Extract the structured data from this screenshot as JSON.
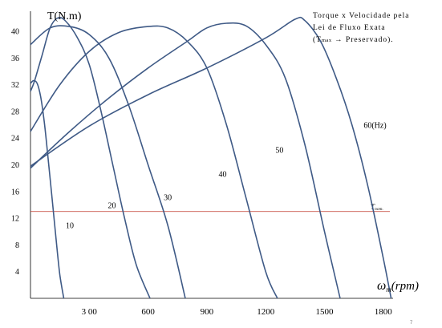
{
  "chart_data": {
    "type": "line",
    "ylabel": "T(N.m)",
    "xlabel_symbol": "ω",
    "xlabel_subscript": "m",
    "xlabel_unit": "(rpm)",
    "xlim": [
      0,
      1850
    ],
    "ylim": [
      0,
      43
    ],
    "x_ticks": [
      {
        "value": 300,
        "label": "3 00"
      },
      {
        "value": 600,
        "label": "600"
      },
      {
        "value": 900,
        "label": "900"
      },
      {
        "value": 1200,
        "label": "1200"
      },
      {
        "value": 1500,
        "label": "1500"
      },
      {
        "value": 1800,
        "label": "1800"
      }
    ],
    "y_ticks": [
      4,
      8,
      12,
      16,
      20,
      24,
      28,
      32,
      36,
      40
    ],
    "grid": false,
    "annotation": {
      "line1": "Torque x Velocidade pela",
      "line2": "Lei de Fluxo Exata",
      "tmax_main": "T",
      "tmax_sub": "max",
      "arrow": "→",
      "preserved": "Preservado)."
    },
    "rated_torque": {
      "value": 13,
      "label_main": "T",
      "label_sub": "nom.",
      "color": "#c0392b"
    },
    "series": [
      {
        "name": "10",
        "label_at": [
          180,
          10.5
        ],
        "points": [
          [
            0,
            32.2
          ],
          [
            16,
            32.6
          ],
          [
            34,
            32.2
          ],
          [
            52,
            30.2
          ],
          [
            70,
            26.5
          ],
          [
            88,
            21.5
          ],
          [
            110,
            15
          ],
          [
            130,
            9
          ],
          [
            150,
            3.5
          ],
          [
            170,
            0
          ]
        ]
      },
      {
        "name": "20",
        "label_at": [
          395,
          13.5
        ],
        "points": [
          [
            0,
            31
          ],
          [
            20,
            32.5
          ],
          [
            60,
            36.5
          ],
          [
            100,
            40.5
          ],
          [
            140,
            42
          ],
          [
            180,
            41.5
          ],
          [
            240,
            39
          ],
          [
            300,
            35
          ],
          [
            360,
            28
          ],
          [
            420,
            20
          ],
          [
            480,
            12
          ],
          [
            540,
            5
          ],
          [
            610,
            0
          ]
        ]
      },
      {
        "name": "30",
        "label_at": [
          680,
          14.7
        ],
        "points": [
          [
            0,
            38
          ],
          [
            100,
            40.5
          ],
          [
            200,
            40.7
          ],
          [
            300,
            39.5
          ],
          [
            400,
            36
          ],
          [
            500,
            29
          ],
          [
            600,
            20
          ],
          [
            700,
            11
          ],
          [
            790,
            0
          ]
        ]
      },
      {
        "name": "40",
        "label_at": [
          960,
          18.2
        ],
        "points": [
          [
            0,
            25
          ],
          [
            150,
            32
          ],
          [
            300,
            37
          ],
          [
            450,
            39.8
          ],
          [
            600,
            40.7
          ],
          [
            700,
            40.5
          ],
          [
            800,
            38.5
          ],
          [
            900,
            34.5
          ],
          [
            1000,
            26
          ],
          [
            1100,
            15
          ],
          [
            1200,
            4
          ],
          [
            1260,
            0
          ]
        ]
      },
      {
        "name": "50",
        "label_at": [
          1250,
          21.8
        ],
        "points": [
          [
            0,
            19.5
          ],
          [
            200,
            25
          ],
          [
            400,
            30
          ],
          [
            600,
            34.5
          ],
          [
            800,
            38.5
          ],
          [
            900,
            40.5
          ],
          [
            1000,
            41.2
          ],
          [
            1100,
            40.8
          ],
          [
            1200,
            38
          ],
          [
            1300,
            33
          ],
          [
            1400,
            23
          ],
          [
            1500,
            10
          ],
          [
            1580,
            0
          ]
        ]
      },
      {
        "name": "60(Hz)",
        "label_at": [
          1700,
          25.5
        ],
        "points": [
          [
            0,
            19.8
          ],
          [
            300,
            25.8
          ],
          [
            600,
            30.5
          ],
          [
            900,
            34.5
          ],
          [
            1200,
            39
          ],
          [
            1350,
            41.8
          ],
          [
            1400,
            41.6
          ],
          [
            1480,
            38.5
          ],
          [
            1560,
            33
          ],
          [
            1640,
            26
          ],
          [
            1720,
            17
          ],
          [
            1800,
            6
          ],
          [
            1840,
            0
          ]
        ]
      }
    ]
  }
}
